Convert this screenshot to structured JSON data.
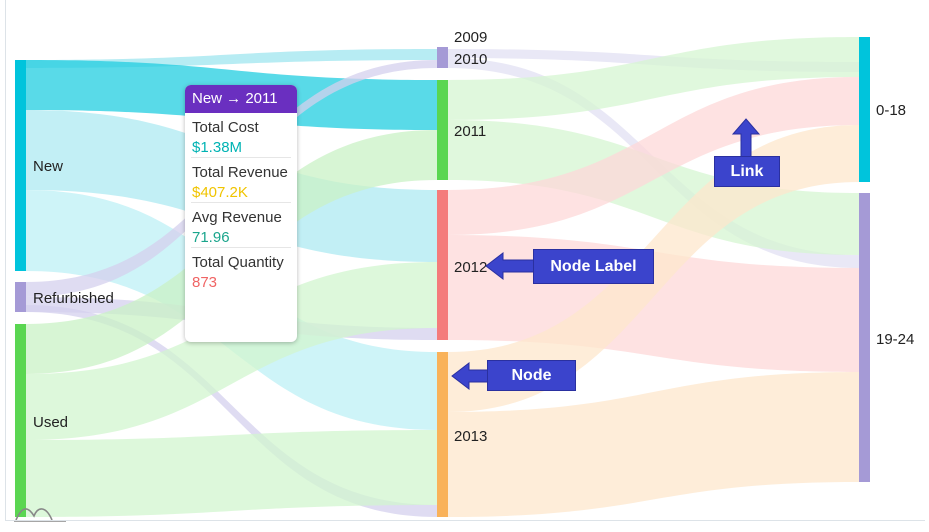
{
  "diagram": {
    "type": "sankey",
    "columns": [
      {
        "nodes": [
          {
            "id": "new",
            "label": "New",
            "color": "#00c4dc"
          },
          {
            "id": "refurb",
            "label": "Refurbished",
            "color": "#a59ad6"
          },
          {
            "id": "used",
            "label": "Used",
            "color": "#5ad651"
          }
        ]
      },
      {
        "nodes": [
          {
            "id": "y2009",
            "label": "2009",
            "color": "#a59ad6"
          },
          {
            "id": "y2010",
            "label": "2010",
            "color": "#a59ad6"
          },
          {
            "id": "y2011",
            "label": "2011",
            "color": "#5ad651"
          },
          {
            "id": "y2012",
            "label": "2012",
            "color": "#f47b7b"
          },
          {
            "id": "y2013",
            "label": "2013",
            "color": "#f9b25a"
          }
        ]
      },
      {
        "nodes": [
          {
            "id": "a018",
            "label": "0-18",
            "color": "#00c4dc"
          },
          {
            "id": "a1924",
            "label": "19-24",
            "color": "#a59ad6"
          }
        ]
      }
    ]
  },
  "tooltip": {
    "title": "New → 2011",
    "rows": [
      {
        "label": "Total Cost",
        "value": "$1.38M",
        "color": "#00b3b3"
      },
      {
        "label": "Total Revenue",
        "value": "$407.2K",
        "color": "#f0c400"
      },
      {
        "label": "Avg Revenue",
        "value": "71.96",
        "color": "#1aa58c"
      },
      {
        "label": "Total Quantity",
        "value": "873",
        "color": "#f06464"
      }
    ]
  },
  "callouts": {
    "link": "Link",
    "node_label": "Node Label",
    "node": "Node"
  }
}
